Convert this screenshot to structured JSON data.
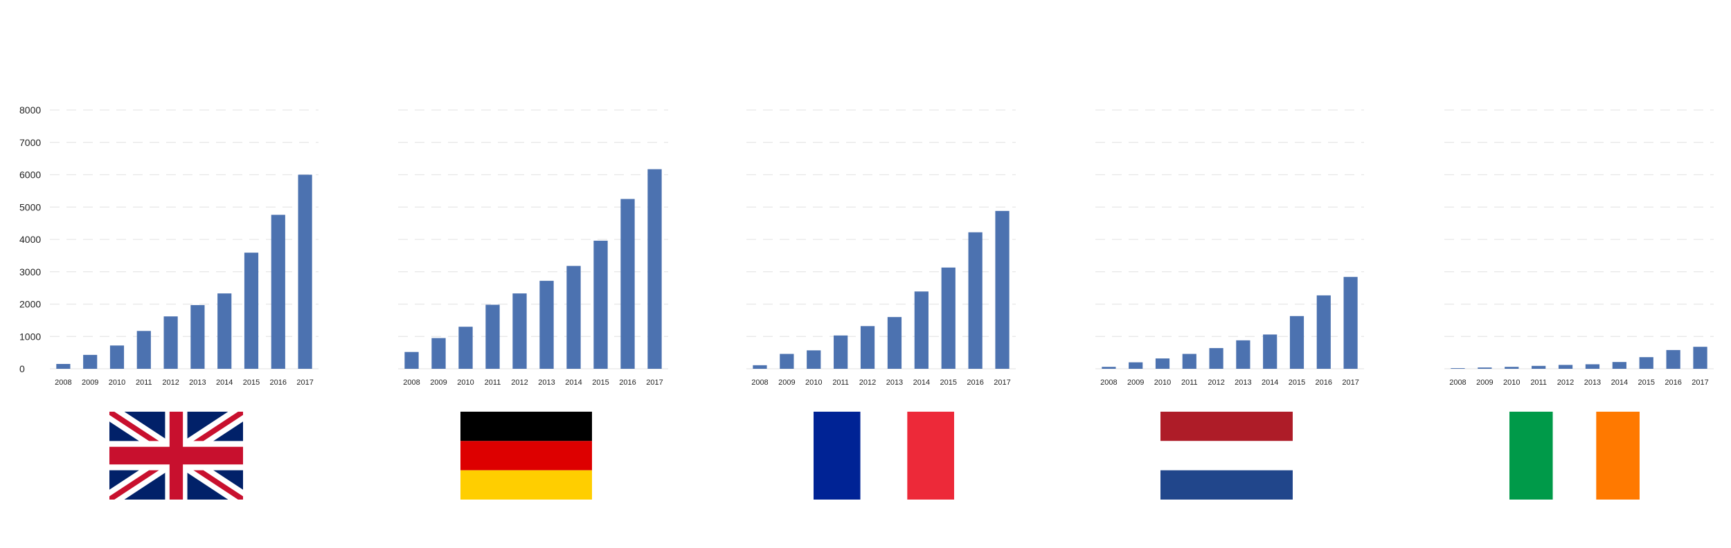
{
  "colors": {
    "bar": "#4c72b0",
    "grid": "#e6e6e6",
    "text": "#222222"
  },
  "chart_data": [
    {
      "type": "bar",
      "categories": [
        "2008",
        "2009",
        "2010",
        "2011",
        "2012",
        "2013",
        "2014",
        "2015",
        "2016",
        "2017"
      ],
      "values": [
        150,
        430,
        720,
        1170,
        1620,
        1970,
        2330,
        3590,
        4760,
        6000
      ],
      "ylim": [
        0,
        8000
      ],
      "yticks": [
        "0",
        "1000",
        "2000",
        "3000",
        "4000",
        "5000",
        "6000",
        "7000",
        "8000"
      ],
      "grid": true,
      "flag": "united-kingdom-flag-icon"
    },
    {
      "type": "bar",
      "categories": [
        "2008",
        "2009",
        "2010",
        "2011",
        "2012",
        "2013",
        "2014",
        "2015",
        "2016",
        "2017"
      ],
      "values": [
        520,
        950,
        1300,
        1980,
        2330,
        2720,
        3180,
        3960,
        5250,
        6170
      ],
      "ylim": [
        0,
        8000
      ],
      "grid": true,
      "flag": "germany-flag-icon"
    },
    {
      "type": "bar",
      "categories": [
        "2008",
        "2009",
        "2010",
        "2011",
        "2012",
        "2013",
        "2014",
        "2015",
        "2016",
        "2017"
      ],
      "values": [
        110,
        460,
        570,
        1030,
        1320,
        1600,
        2390,
        3130,
        4220,
        4880
      ],
      "ylim": [
        0,
        8000
      ],
      "grid": true,
      "flag": "france-flag-icon"
    },
    {
      "type": "bar",
      "categories": [
        "2008",
        "2009",
        "2010",
        "2011",
        "2012",
        "2013",
        "2014",
        "2015",
        "2016",
        "2017"
      ],
      "values": [
        60,
        200,
        320,
        460,
        640,
        880,
        1060,
        1630,
        2270,
        2840
      ],
      "ylim": [
        0,
        8000
      ],
      "grid": true,
      "flag": "netherlands-flag-icon"
    },
    {
      "type": "bar",
      "categories": [
        "2008",
        "2009",
        "2010",
        "2011",
        "2012",
        "2013",
        "2014",
        "2015",
        "2016",
        "2017"
      ],
      "values": [
        20,
        40,
        60,
        90,
        120,
        140,
        210,
        360,
        580,
        680
      ],
      "ylim": [
        0,
        8000
      ],
      "grid": true,
      "flag": "ireland-flag-icon"
    }
  ]
}
